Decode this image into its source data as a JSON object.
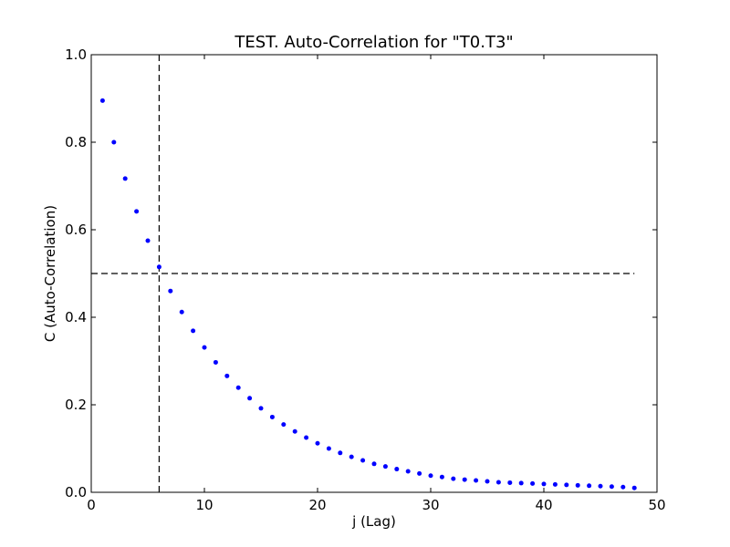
{
  "chart_data": {
    "type": "scatter",
    "title": "TEST. Auto-Correlation for \"T0.T3\"",
    "xlabel": "j (Lag)",
    "ylabel": "C (Auto-Correlation)",
    "xlim": [
      0,
      50
    ],
    "ylim": [
      0.0,
      1.0
    ],
    "xticks": [
      0,
      10,
      20,
      30,
      40,
      50
    ],
    "yticks": [
      0.0,
      0.2,
      0.4,
      0.6,
      0.8,
      1.0
    ],
    "xtick_labels": [
      "0",
      "10",
      "20",
      "30",
      "40",
      "50"
    ],
    "ytick_labels": [
      "0.0",
      "0.2",
      "0.4",
      "0.6",
      "0.8",
      "1.0"
    ],
    "grid": false,
    "series": [
      {
        "color": "#0000ff",
        "marker": "dot",
        "x": [
          1,
          2,
          3,
          4,
          5,
          6,
          7,
          8,
          9,
          10,
          11,
          12,
          13,
          14,
          15,
          16,
          17,
          18,
          19,
          20,
          21,
          22,
          23,
          24,
          25,
          26,
          27,
          28,
          29,
          30,
          31,
          32,
          33,
          34,
          35,
          36,
          37,
          38,
          39,
          40,
          41,
          42,
          43,
          44,
          45,
          46,
          47,
          48
        ],
        "y": [
          0.895,
          0.8,
          0.717,
          0.642,
          0.575,
          0.515,
          0.46,
          0.412,
          0.369,
          0.331,
          0.297,
          0.266,
          0.239,
          0.215,
          0.192,
          0.172,
          0.155,
          0.139,
          0.125,
          0.112,
          0.1,
          0.09,
          0.081,
          0.073,
          0.065,
          0.059,
          0.053,
          0.048,
          0.043,
          0.038,
          0.035,
          0.031,
          0.029,
          0.027,
          0.025,
          0.023,
          0.022,
          0.021,
          0.02,
          0.019,
          0.018,
          0.017,
          0.016,
          0.015,
          0.014,
          0.013,
          0.012,
          0.01
        ]
      }
    ],
    "reference_lines": [
      {
        "orientation": "vertical",
        "x": 6,
        "ymin": 0.0,
        "ymax": 1.0,
        "style": "dashed",
        "color": "#000000"
      },
      {
        "orientation": "horizontal",
        "y": 0.5,
        "xmin": 0,
        "xmax": 48,
        "style": "dashed",
        "color": "#000000"
      }
    ]
  }
}
